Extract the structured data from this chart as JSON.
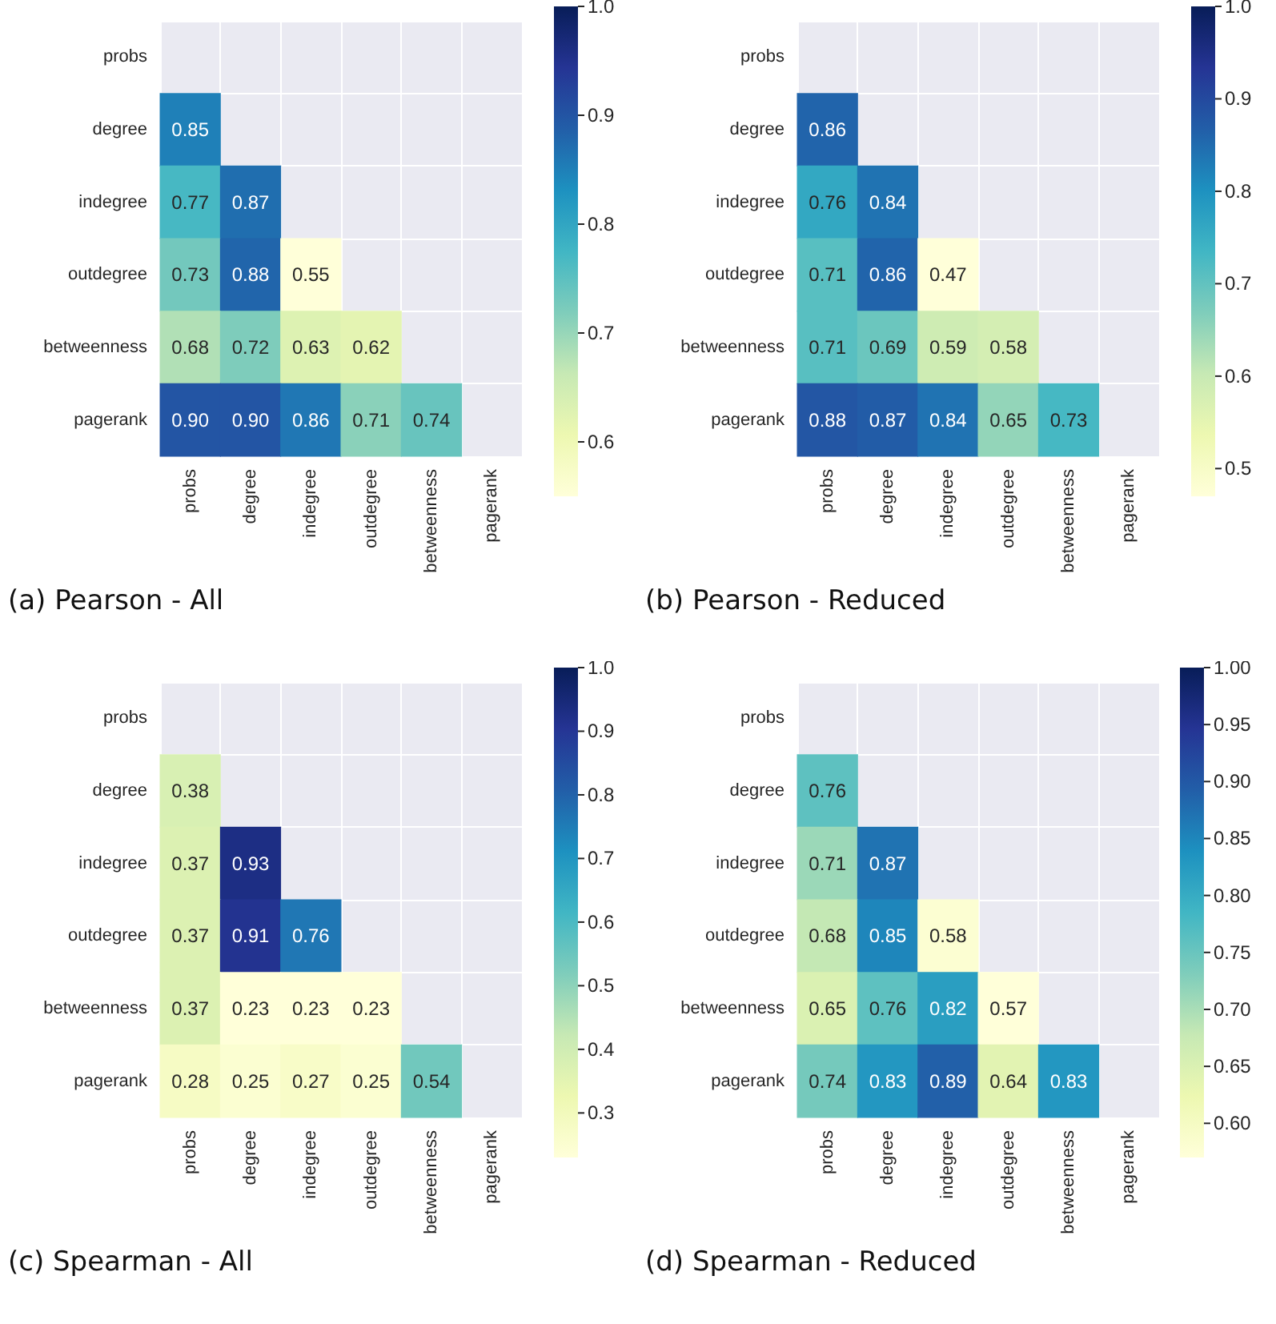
{
  "chart_data": [
    {
      "type": "heatmap",
      "title": "(a) Pearson - All",
      "categories": [
        "probs",
        "degree",
        "indegree",
        "outdegree",
        "betweenness",
        "pagerank"
      ],
      "y_categories": [
        "probs",
        "degree",
        "indegree",
        "outdegree",
        "betweenness",
        "pagerank"
      ],
      "cells": [
        [
          null,
          null,
          null,
          null,
          null,
          null
        ],
        [
          0.85,
          null,
          null,
          null,
          null,
          null
        ],
        [
          0.77,
          0.87,
          null,
          null,
          null,
          null
        ],
        [
          0.73,
          0.88,
          0.55,
          null,
          null,
          null
        ],
        [
          0.68,
          0.72,
          0.63,
          0.62,
          null,
          null
        ],
        [
          0.9,
          0.9,
          0.86,
          0.71,
          0.74,
          null
        ]
      ],
      "cell_labels": [
        [
          null,
          null,
          null,
          null,
          null,
          null
        ],
        [
          "0.85",
          null,
          null,
          null,
          null,
          null
        ],
        [
          "0.77",
          "0.87",
          null,
          null,
          null,
          null
        ],
        [
          "0.73",
          "0.88",
          "0.55",
          null,
          null,
          null
        ],
        [
          "0.68",
          "0.72",
          "0.63",
          "0.62",
          null,
          null
        ],
        [
          "0.90",
          "0.90",
          "0.86",
          "0.71",
          "0.74",
          null
        ]
      ],
      "clim": [
        0.55,
        1.0
      ],
      "cticks": [
        {
          "value": 0.6,
          "label": "0.6"
        },
        {
          "value": 0.7,
          "label": "0.7"
        },
        {
          "value": 0.8,
          "label": "0.8"
        },
        {
          "value": 0.9,
          "label": "0.9"
        },
        {
          "value": 1,
          "label": "1.0"
        }
      ],
      "data_labels": true,
      "grid": true
    },
    {
      "type": "heatmap",
      "title": "(b) Pearson - Reduced",
      "categories": [
        "probs",
        "degree",
        "indegree",
        "outdegree",
        "betweenness",
        "pagerank"
      ],
      "y_categories": [
        "probs",
        "degree",
        "indegree",
        "outdegree",
        "betweenness",
        "pagerank"
      ],
      "cells": [
        [
          null,
          null,
          null,
          null,
          null,
          null
        ],
        [
          0.86,
          null,
          null,
          null,
          null,
          null
        ],
        [
          0.76,
          0.84,
          null,
          null,
          null,
          null
        ],
        [
          0.71,
          0.86,
          0.47,
          null,
          null,
          null
        ],
        [
          0.71,
          0.69,
          0.59,
          0.58,
          null,
          null
        ],
        [
          0.88,
          0.87,
          0.84,
          0.65,
          0.73,
          null
        ]
      ],
      "clim": [
        0.47,
        1.0
      ],
      "cticks": [
        {
          "value": 0.5,
          "label": "0.5"
        },
        {
          "value": 0.6,
          "label": "0.6"
        },
        {
          "value": 0.7,
          "label": "0.7"
        },
        {
          "value": 0.8,
          "label": "0.8"
        },
        {
          "value": 0.9,
          "label": "0.9"
        },
        {
          "value": 1,
          "label": "1.0"
        }
      ],
      "data_labels": true,
      "grid": true
    },
    {
      "type": "heatmap",
      "title": "(c) Spearman - All",
      "categories": [
        "probs",
        "degree",
        "indegree",
        "outdegree",
        "betweenness",
        "pagerank"
      ],
      "y_categories": [
        "probs",
        "degree",
        "indegree",
        "outdegree",
        "betweenness",
        "pagerank"
      ],
      "cells": [
        [
          null,
          null,
          null,
          null,
          null,
          null
        ],
        [
          0.38,
          null,
          null,
          null,
          null,
          null
        ],
        [
          0.37,
          0.93,
          null,
          null,
          null,
          null
        ],
        [
          0.37,
          0.91,
          0.76,
          null,
          null,
          null
        ],
        [
          0.37,
          0.23,
          0.23,
          0.23,
          null,
          null
        ],
        [
          0.28,
          0.25,
          0.27,
          0.25,
          0.54,
          null
        ]
      ],
      "clim": [
        0.23,
        1.0
      ],
      "cticks": [
        {
          "value": 0.3,
          "label": "0.3"
        },
        {
          "value": 0.4,
          "label": "0.4"
        },
        {
          "value": 0.5,
          "label": "0.5"
        },
        {
          "value": 0.6,
          "label": "0.6"
        },
        {
          "value": 0.7,
          "label": "0.7"
        },
        {
          "value": 0.8,
          "label": "0.8"
        },
        {
          "value": 0.9,
          "label": "0.9"
        },
        {
          "value": 1,
          "label": "1.0"
        }
      ],
      "data_labels": true,
      "grid": true
    },
    {
      "type": "heatmap",
      "title": "(d) Spearman - Reduced",
      "categories": [
        "probs",
        "degree",
        "indegree",
        "outdegree",
        "betweenness",
        "pagerank"
      ],
      "y_categories": [
        "probs",
        "degree",
        "indegree",
        "outdegree",
        "betweenness",
        "pagerank"
      ],
      "cells": [
        [
          null,
          null,
          null,
          null,
          null,
          null
        ],
        [
          0.76,
          null,
          null,
          null,
          null,
          null
        ],
        [
          0.71,
          0.87,
          null,
          null,
          null,
          null
        ],
        [
          0.68,
          0.85,
          0.58,
          null,
          null,
          null
        ],
        [
          0.65,
          0.76,
          0.82,
          0.57,
          null,
          null
        ],
        [
          0.74,
          0.83,
          0.89,
          0.64,
          0.83,
          null
        ]
      ],
      "clim": [
        0.57,
        1.0
      ],
      "cticks": [
        {
          "value": 0.6,
          "label": "0.60"
        },
        {
          "value": 0.65,
          "label": "0.65"
        },
        {
          "value": 0.7,
          "label": "0.70"
        },
        {
          "value": 0.75,
          "label": "0.75"
        },
        {
          "value": 0.8,
          "label": "0.80"
        },
        {
          "value": 0.85,
          "label": "0.85"
        },
        {
          "value": 0.9,
          "label": "0.90"
        },
        {
          "value": 0.95,
          "label": "0.95"
        },
        {
          "value": 1,
          "label": "1.00"
        }
      ],
      "data_labels": true,
      "grid": true
    }
  ]
}
